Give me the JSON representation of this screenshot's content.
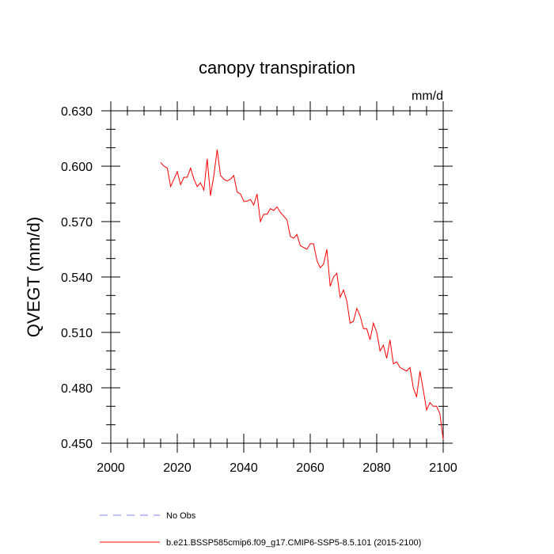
{
  "chart_data": {
    "type": "line",
    "title": "canopy transpiration",
    "units": "mm/d",
    "xlabel": "",
    "ylabel": "QVEGT  (mm/d)",
    "xlim": [
      2000,
      2100
    ],
    "ylim": [
      0.45,
      0.63
    ],
    "x_major_ticks": [
      2000,
      2020,
      2040,
      2060,
      2080,
      2100
    ],
    "x_tick_labels": [
      "2000",
      "2020",
      "2040",
      "2060",
      "2080",
      "2100"
    ],
    "y_major_ticks": [
      0.45,
      0.48,
      0.51,
      0.54,
      0.57,
      0.6,
      0.63
    ],
    "y_tick_labels": [
      "0.450",
      "0.480",
      "0.510",
      "0.540",
      "0.570",
      "0.600",
      "0.630"
    ],
    "grid": false,
    "legend_position": "bottom-left",
    "series": [
      {
        "name": "No Obs",
        "color": "#8080ff",
        "dash": "dashed",
        "x": [],
        "y": []
      },
      {
        "name": "b.e21.BSSP585cmip6.f09_g17.CMIP6-SSP5-8.5.101 (2015-2100)",
        "color": "#ff0000",
        "dash": "solid",
        "x": [
          2015,
          2016,
          2017,
          2018,
          2019,
          2020,
          2021,
          2022,
          2023,
          2024,
          2025,
          2026,
          2027,
          2028,
          2029,
          2030,
          2031,
          2032,
          2033,
          2034,
          2035,
          2036,
          2037,
          2038,
          2039,
          2040,
          2041,
          2042,
          2043,
          2044,
          2045,
          2046,
          2047,
          2048,
          2049,
          2050,
          2051,
          2052,
          2053,
          2054,
          2055,
          2056,
          2057,
          2058,
          2059,
          2060,
          2061,
          2062,
          2063,
          2064,
          2065,
          2066,
          2067,
          2068,
          2069,
          2070,
          2071,
          2072,
          2073,
          2074,
          2075,
          2076,
          2077,
          2078,
          2079,
          2080,
          2081,
          2082,
          2083,
          2084,
          2085,
          2086,
          2087,
          2088,
          2089,
          2090,
          2091,
          2092,
          2093,
          2094,
          2095,
          2096,
          2097,
          2098,
          2099,
          2100
        ],
        "y": [
          0.602,
          0.6,
          0.599,
          0.589,
          0.593,
          0.597,
          0.59,
          0.594,
          0.594,
          0.599,
          0.593,
          0.589,
          0.591,
          0.587,
          0.604,
          0.584,
          0.595,
          0.609,
          0.595,
          0.593,
          0.592,
          0.593,
          0.595,
          0.586,
          0.585,
          0.581,
          0.581,
          0.582,
          0.579,
          0.585,
          0.57,
          0.574,
          0.574,
          0.577,
          0.576,
          0.578,
          0.575,
          0.573,
          0.571,
          0.562,
          0.561,
          0.563,
          0.557,
          0.556,
          0.555,
          0.558,
          0.558,
          0.549,
          0.545,
          0.547,
          0.555,
          0.535,
          0.54,
          0.542,
          0.529,
          0.533,
          0.527,
          0.515,
          0.516,
          0.523,
          0.519,
          0.512,
          0.512,
          0.506,
          0.515,
          0.51,
          0.5,
          0.503,
          0.496,
          0.506,
          0.493,
          0.494,
          0.491,
          0.49,
          0.489,
          0.491,
          0.48,
          0.475,
          0.489,
          0.479,
          0.468,
          0.472,
          0.47,
          0.47,
          0.466,
          0.452
        ]
      }
    ]
  }
}
